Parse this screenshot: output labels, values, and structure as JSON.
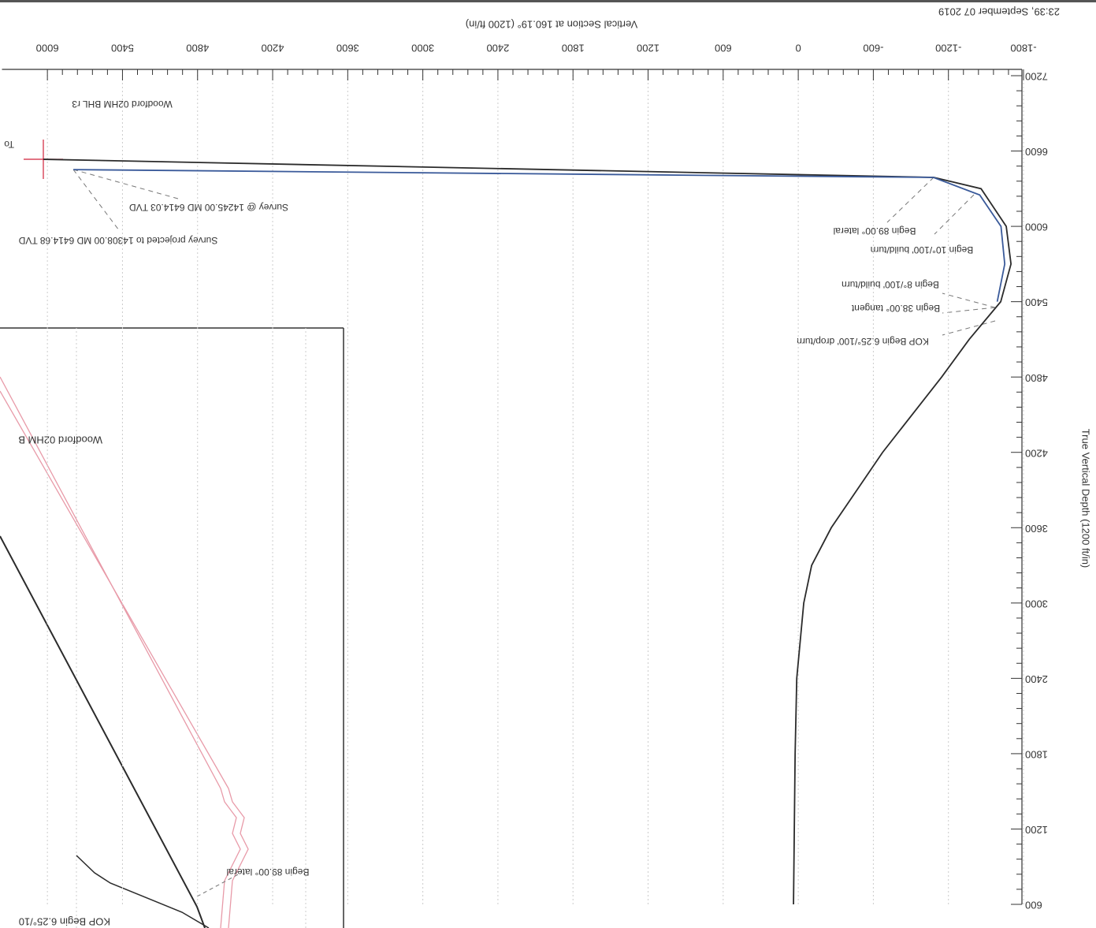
{
  "chart_data": {
    "type": "line",
    "timestamp": "23:39, September 07 2019",
    "x_label": "Vertical Section at 160.19° (1200 ft/in)",
    "y_label": "True Vertical Depth (1200 ft/in)",
    "xlim": [
      -1800,
      6300
    ],
    "ylim": [
      600,
      7200
    ],
    "xticks": [
      -1800,
      -1200,
      -600,
      0,
      600,
      1200,
      1800,
      2400,
      3000,
      3600,
      4200,
      4800,
      5400,
      6000
    ],
    "yticks": [
      600,
      1200,
      1800,
      2400,
      3000,
      3600,
      4200,
      4800,
      5400,
      6000,
      6600,
      7200
    ],
    "grid": true,
    "series": [
      {
        "color": "#2b2b2b",
        "x": [
          38,
          25,
          12,
          -44,
          -107,
          -264,
          -674,
          -1146,
          -1366,
          -1618,
          -1700,
          -1662,
          -1461,
          -1083,
          6032
        ],
        "values": [
          600,
          1800,
          2400,
          3000,
          3300,
          3600,
          4200,
          4800,
          5100,
          5400,
          5700,
          6000,
          6300,
          6390,
          6534
        ]
      },
      {
        "color": "#3a5a9a",
        "x": [
          -1590,
          -1650,
          -1620,
          -1450,
          -1080,
          -500,
          5792
        ],
        "values": [
          5400,
          5700,
          6000,
          6250,
          6390,
          6395,
          6452
        ]
      }
    ],
    "annotations": [
      "Woodford 02HM BHL r3",
      "Survey @ 14245.00 MD 6414.03 TVD",
      "Survey projected to 14308.00 MD 6414.68 TVD",
      "Begin 89.00° lateral",
      "Begin 10°/100' build/turn",
      "Begin 8°/100' build/turn",
      "Begin 38.00° tangent",
      "KOP Begin 6.25°/100' drop/turn",
      "To",
      "Woodford 02HM B",
      "Begin 89.00° lateral",
      "KOP Begin 6.25°/10"
    ]
  }
}
